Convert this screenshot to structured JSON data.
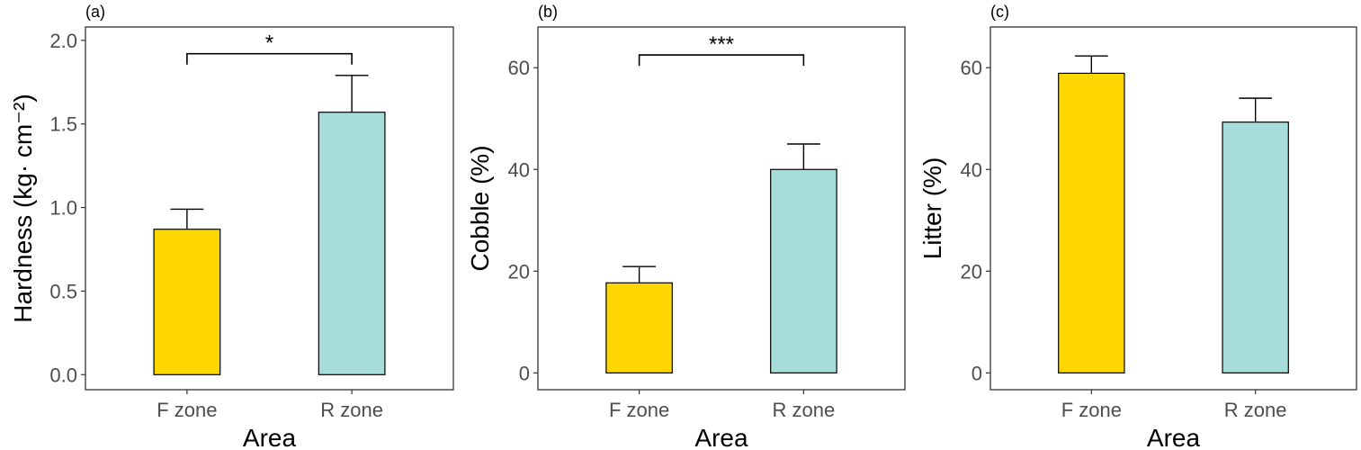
{
  "chart_data": [
    {
      "type": "bar",
      "panel_label": "(a)",
      "categories": [
        "F zone",
        "R zone"
      ],
      "values": [
        0.87,
        1.57
      ],
      "errors": [
        0.12,
        0.22
      ],
      "colors": [
        "#FFD700",
        "#A6DCD9"
      ],
      "xlabel": "Area",
      "ylabel": "Hardness (kg· cm⁻²)",
      "ylim": [
        -0.09,
        2.08
      ],
      "yticks": [
        "0.0",
        "0.5",
        "1.0",
        "1.5",
        "2.0"
      ],
      "significance": {
        "label": "*",
        "y": 1.92
      },
      "grid": false
    },
    {
      "type": "bar",
      "panel_label": "(b)",
      "categories": [
        "F zone",
        "R zone"
      ],
      "values": [
        17.7,
        40.0
      ],
      "errors": [
        3.2,
        5.0
      ],
      "colors": [
        "#FFD700",
        "#A6DCD9"
      ],
      "xlabel": "Area",
      "ylabel": "Cobble (%)",
      "ylim": [
        -3.3,
        68
      ],
      "yticks": [
        "0",
        "20",
        "40",
        "60"
      ],
      "significance": {
        "label": "***",
        "y": 62.5
      },
      "grid": false
    },
    {
      "type": "bar",
      "panel_label": "(c)",
      "categories": [
        "F zone",
        "R zone"
      ],
      "values": [
        58.9,
        49.3
      ],
      "errors": [
        3.4,
        4.7
      ],
      "colors": [
        "#FFD700",
        "#A6DCD9"
      ],
      "xlabel": "Area",
      "ylabel": "Litter (%)",
      "ylim": [
        -3.3,
        68
      ],
      "yticks": [
        "0",
        "20",
        "40",
        "60"
      ],
      "significance": null,
      "grid": false
    }
  ]
}
